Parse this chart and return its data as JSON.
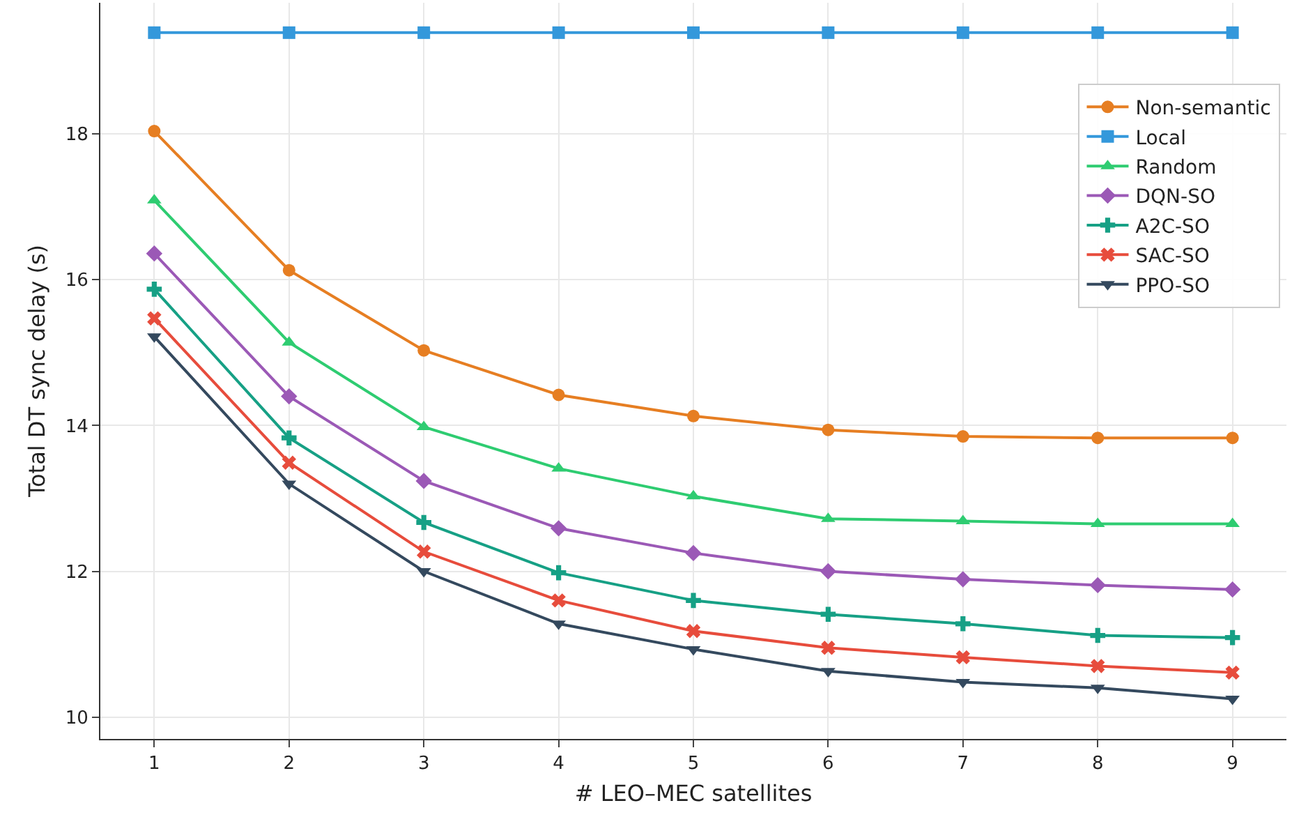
{
  "chart_data": {
    "type": "line",
    "xlabel": "# LEO–MEC satellites",
    "ylabel": "Total DT sync delay (s)",
    "x": [
      1,
      2,
      3,
      4,
      5,
      6,
      7,
      8,
      9
    ],
    "series": [
      {
        "name": "Non-semantic",
        "color": "#e67e22",
        "marker": "circle",
        "values": [
          18.04,
          16.13,
          15.03,
          14.42,
          14.13,
          13.94,
          13.85,
          13.83,
          13.83
        ]
      },
      {
        "name": "Local",
        "color": "#3498db",
        "marker": "square",
        "values": [
          19.39,
          19.39,
          19.39,
          19.39,
          19.39,
          19.39,
          19.39,
          19.39,
          19.39
        ]
      },
      {
        "name": "Random",
        "color": "#2ecc71",
        "marker": "triangle",
        "values": [
          17.09,
          15.14,
          13.98,
          13.41,
          13.03,
          12.72,
          12.69,
          12.65,
          12.65
        ]
      },
      {
        "name": "DQN-SO",
        "color": "#9b59b6",
        "marker": "diamond",
        "values": [
          16.36,
          14.4,
          13.24,
          12.59,
          12.25,
          12.0,
          11.89,
          11.81,
          11.75
        ]
      },
      {
        "name": "A2C-SO",
        "color": "#16a085",
        "marker": "cross",
        "values": [
          15.87,
          13.83,
          12.67,
          11.98,
          11.6,
          11.41,
          11.28,
          11.12,
          11.09
        ]
      },
      {
        "name": "SAC-SO",
        "color": "#e74c3c",
        "marker": "x",
        "values": [
          15.47,
          13.49,
          12.27,
          11.6,
          11.18,
          10.95,
          10.82,
          10.7,
          10.61
        ]
      },
      {
        "name": "PPO-SO",
        "color": "#34495e",
        "marker": "triangle-down",
        "values": [
          15.22,
          13.2,
          12.0,
          11.28,
          10.93,
          10.63,
          10.48,
          10.4,
          10.25
        ]
      }
    ],
    "xlim": [
      0.6,
      9.4
    ],
    "xticks": [
      1,
      2,
      3,
      4,
      5,
      6,
      7,
      8,
      9
    ],
    "ylim": [
      9.7,
      19.8
    ],
    "yticks": [
      10,
      12,
      14,
      16,
      18
    ],
    "grid": true,
    "legend": "top right",
    "line_style": "solid"
  }
}
